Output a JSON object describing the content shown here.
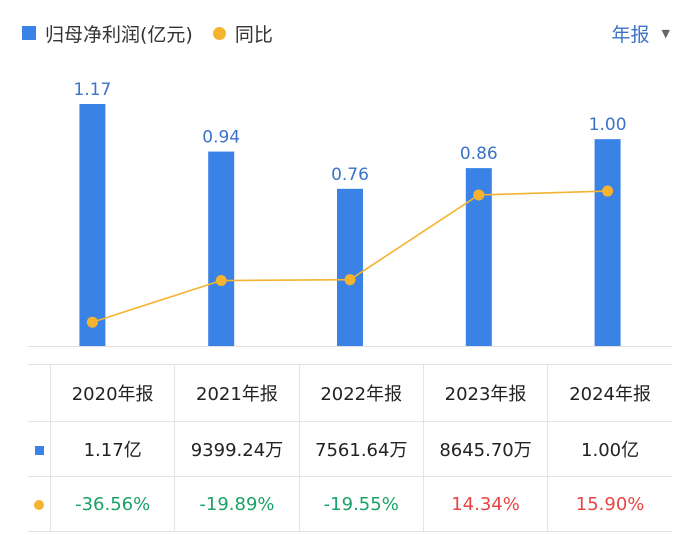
{
  "legend": {
    "bar_label": "归母净利润(亿元)",
    "line_label": "同比"
  },
  "period_selector": {
    "value": "年报"
  },
  "colors": {
    "bar": "#3a82e6",
    "line": "#f5b330",
    "label_blue": "#3b73c8",
    "positive": "#e84545",
    "negative": "#1aa26a"
  },
  "chart_data": {
    "type": "bar",
    "categories": [
      "2020年报",
      "2021年报",
      "2022年报",
      "2023年报",
      "2024年报"
    ],
    "series": [
      {
        "name": "归母净利润(亿元)",
        "type": "bar",
        "values": [
          1.17,
          0.94,
          0.76,
          0.86,
          1.0
        ],
        "data_labels": [
          "1.17",
          "0.94",
          "0.76",
          "0.86",
          "1.00"
        ]
      },
      {
        "name": "同比",
        "type": "line",
        "values": [
          -36.56,
          -19.89,
          -19.55,
          14.34,
          15.9
        ]
      }
    ]
  },
  "table": {
    "headers": [
      "2020年报",
      "2021年报",
      "2022年报",
      "2023年报",
      "2024年报"
    ],
    "net_profit": [
      "1.17亿",
      "9399.24万",
      "7561.64万",
      "8645.70万",
      "1.00亿"
    ],
    "yoy": [
      "-36.56%",
      "-19.89%",
      "-19.55%",
      "14.34%",
      "15.90%"
    ]
  }
}
